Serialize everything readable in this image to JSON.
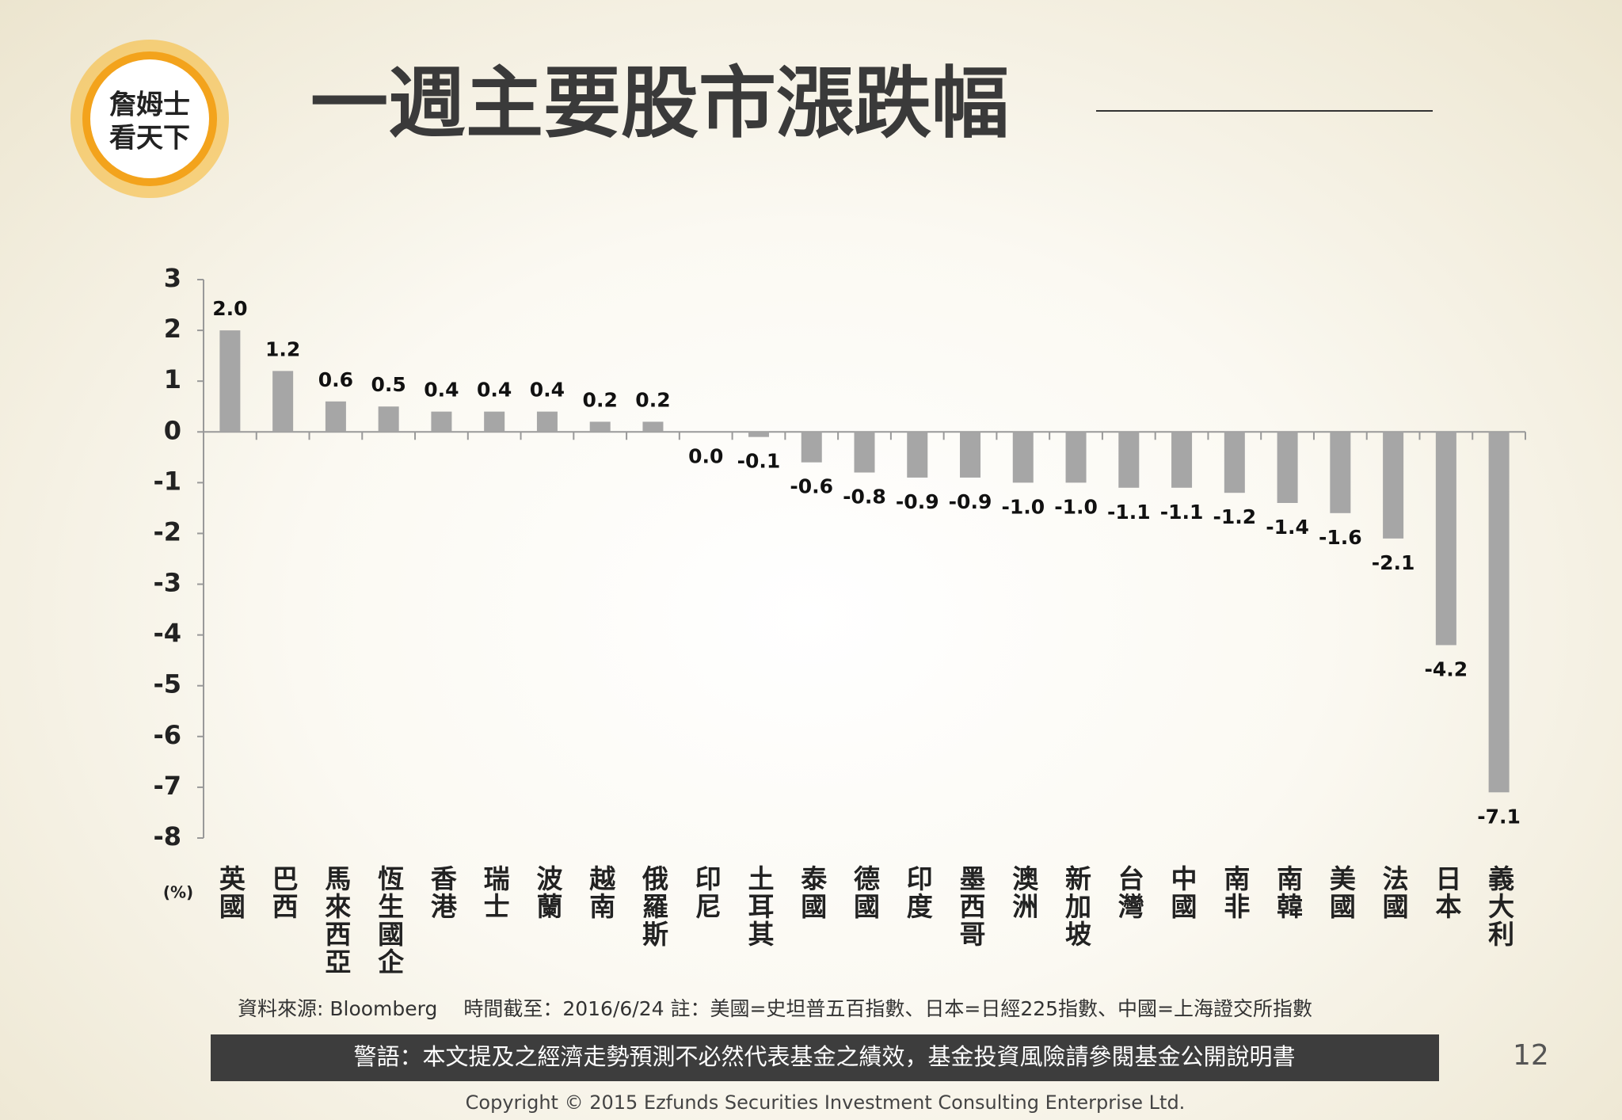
{
  "chart_data": {
    "type": "bar",
    "title": "一週主要股市漲跌幅",
    "categories": [
      "英國",
      "巴西",
      "馬來西亞",
      "恆生國企",
      "香港",
      "瑞士",
      "波蘭",
      "越南",
      "俄羅斯",
      "印尼",
      "土耳其",
      "泰國",
      "德國",
      "印度",
      "墨西哥",
      "澳洲",
      "新加坡",
      "台灣",
      "中國",
      "南非",
      "南韓",
      "美國",
      "法國",
      "日本",
      "義大利"
    ],
    "values": [
      2.0,
      1.2,
      0.6,
      0.5,
      0.4,
      0.4,
      0.4,
      0.2,
      0.2,
      0.0,
      -0.1,
      -0.6,
      -0.8,
      -0.9,
      -0.9,
      -1.0,
      -1.0,
      -1.1,
      -1.1,
      -1.2,
      -1.4,
      -1.6,
      -2.1,
      -4.2,
      -7.1
    ],
    "value_labels": [
      "2.0",
      "1.2",
      "0.6",
      "0.5",
      "0.4",
      "0.4",
      "0.4",
      "0.2",
      "0.2",
      "0.0",
      "-0.1",
      "-0.6",
      "-0.8",
      "-0.9",
      "-0.9",
      "-1.0",
      "-1.0",
      "-1.1",
      "-1.1",
      "-1.2",
      "-1.4",
      "-1.6",
      "-2.1",
      "-4.2",
      "-7.1"
    ],
    "color": "#a6a6a6",
    "y_label": "(%)",
    "ylim": [
      -8,
      3
    ],
    "yticks": [
      -8,
      -7,
      -6,
      -5,
      -4,
      -3,
      -2,
      -1,
      0,
      1,
      2,
      3
    ],
    "grid": false
  },
  "logo": [
    "詹姆士",
    "看天下"
  ],
  "source_note": "資料來源: Bloomberg　 時間截至：2016/6/24  註：美國=史坦普五百指數、日本=日經225指數、中國=上海證交所指數",
  "disclaimer": "警語：本文提及之經濟走勢預測不必然代表基金之績效，基金投資風險請參閱基金公開說明書",
  "page_number": "12",
  "copyright": "Copyright © 2015 Ezfunds Securities Investment Consulting Enterprise Ltd."
}
